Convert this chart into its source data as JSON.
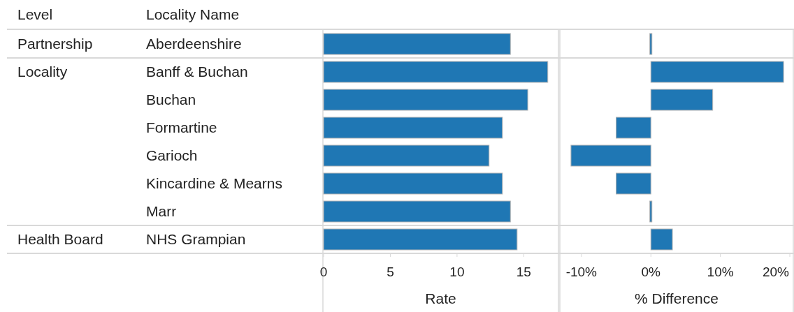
{
  "chart_data": [
    {
      "type": "bar",
      "orientation": "horizontal",
      "xlabel": "Rate",
      "categories": [
        "Aberdeenshire",
        "Banff & Buchan",
        "Buchan",
        "Formartine",
        "Garioch",
        "Kincardine & Mearns",
        "Marr",
        "NHS Grampian"
      ],
      "values": [
        14.0,
        16.8,
        15.3,
        13.4,
        12.4,
        13.4,
        14.0,
        14.5
      ],
      "color": "#1f77b4",
      "xlim": [
        0,
        17.6
      ],
      "xticks": [
        0,
        5,
        10,
        15
      ],
      "annotations": [
        "Level",
        "Locality Name",
        "Partnership",
        "Locality",
        "Health Board"
      ]
    },
    {
      "type": "bar",
      "orientation": "horizontal",
      "xlabel": "% Difference",
      "categories": [
        null,
        null,
        null,
        null,
        null,
        null,
        null,
        null
      ],
      "values": [
        0,
        19.1,
        8.9,
        -5.0,
        -11.5,
        -5.0,
        0,
        3.1
      ],
      "color": "#1f77b4",
      "xlim": [
        -13.1,
        20.5
      ],
      "xticks": [
        {
          "value": -10,
          "label": "-10%"
        },
        {
          "value": 0,
          "label": "0%"
        },
        {
          "value": 10,
          "label": "10%"
        },
        {
          "value": 20,
          "label": "20%"
        }
      ],
      "tick_labels": "x"
    }
  ]
}
